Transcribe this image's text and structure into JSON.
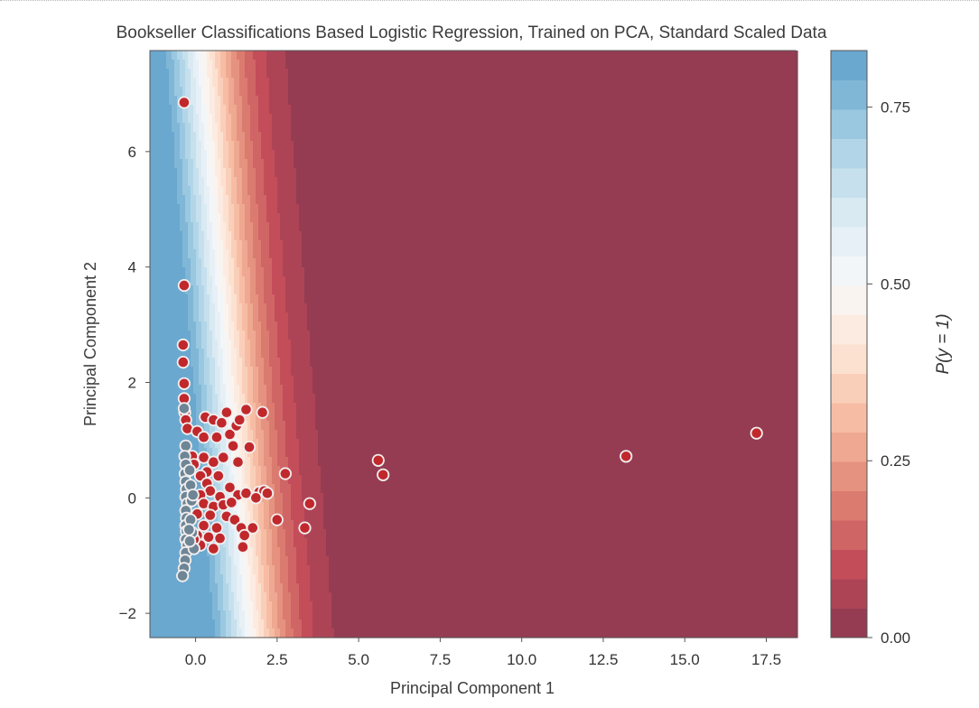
{
  "chart_data": {
    "type": "scatter",
    "title": "Bookseller Classifications Based Logistic Regression, Trained on PCA, Standard Scaled Data",
    "xlabel": "Principal Component 1",
    "ylabel": "Principal Component 2",
    "xlim": [
      -1.4,
      18.4
    ],
    "ylim": [
      -2.42,
      7.75
    ],
    "xticks": [
      0.0,
      2.5,
      5.0,
      7.5,
      10.0,
      12.5,
      15.0,
      17.5
    ],
    "xtick_labels": [
      "0.0",
      "2.5",
      "5.0",
      "7.5",
      "10.0",
      "12.5",
      "15.0",
      "17.5"
    ],
    "yticks": [
      -2,
      0,
      2,
      4,
      6
    ],
    "ytick_labels": [
      "−2",
      "0",
      "2",
      "4",
      "6"
    ],
    "grid": false,
    "background": "filled contour of P(y = 1) from a logistic regression decision function (RdBu colormap)",
    "decision_surface": {
      "intercept": 1.6,
      "coef_x": -1.22,
      "coef_y": -0.18
    },
    "colorbar": {
      "label": "P(y = 1)",
      "range": [
        0.0,
        0.83
      ],
      "ticks": [
        0.0,
        0.25,
        0.5,
        0.75
      ],
      "tick_labels": [
        "0.00",
        "0.25",
        "0.50",
        "0.75"
      ],
      "levels": 20
    },
    "colors": {
      "class_0": "#c0282c",
      "class_1": "#6e8595",
      "marker_edge": "#f2eeee",
      "dark_red": "#67001f",
      "blue": "#8fabc2"
    },
    "series": [
      {
        "class": 0,
        "points": [
          [
            -0.35,
            6.85
          ],
          [
            -0.35,
            3.68
          ],
          [
            -0.38,
            2.65
          ],
          [
            -0.38,
            2.35
          ],
          [
            -0.35,
            1.98
          ],
          [
            -0.35,
            1.72
          ],
          [
            -0.33,
            1.48
          ],
          [
            -0.3,
            1.35
          ],
          [
            -0.25,
            1.2
          ],
          [
            0.05,
            1.15
          ],
          [
            0.3,
            1.4
          ],
          [
            0.55,
            1.35
          ],
          [
            0.8,
            1.3
          ],
          [
            0.95,
            1.48
          ],
          [
            1.55,
            1.53
          ],
          [
            2.05,
            1.48
          ],
          [
            0.25,
            1.05
          ],
          [
            0.65,
            1.05
          ],
          [
            1.05,
            1.1
          ],
          [
            1.25,
            1.25
          ],
          [
            1.35,
            1.35
          ],
          [
            1.65,
            0.88
          ],
          [
            1.15,
            0.9
          ],
          [
            -0.1,
            0.72
          ],
          [
            -0.05,
            0.58
          ],
          [
            0.25,
            0.7
          ],
          [
            0.55,
            0.62
          ],
          [
            0.85,
            0.7
          ],
          [
            1.3,
            0.62
          ],
          [
            0.35,
            0.45
          ],
          [
            0.15,
            0.38
          ],
          [
            0.7,
            0.38
          ],
          [
            0.35,
            0.25
          ],
          [
            1.05,
            0.18
          ],
          [
            0.45,
            0.12
          ],
          [
            0.15,
            0.05
          ],
          [
            0.75,
            0.02
          ],
          [
            1.3,
            0.05
          ],
          [
            1.55,
            0.08
          ],
          [
            1.95,
            0.1
          ],
          [
            2.1,
            0.12
          ],
          [
            2.2,
            0.08
          ],
          [
            1.85,
            0.0
          ],
          [
            0.25,
            -0.1
          ],
          [
            0.55,
            -0.15
          ],
          [
            0.85,
            -0.12
          ],
          [
            1.1,
            -0.08
          ],
          [
            0.05,
            -0.28
          ],
          [
            0.45,
            -0.3
          ],
          [
            0.95,
            -0.32
          ],
          [
            1.2,
            -0.38
          ],
          [
            0.25,
            -0.48
          ],
          [
            0.65,
            -0.52
          ],
          [
            1.4,
            -0.52
          ],
          [
            1.75,
            -0.52
          ],
          [
            0.05,
            -0.65
          ],
          [
            0.4,
            -0.68
          ],
          [
            0.75,
            -0.7
          ],
          [
            1.5,
            -0.65
          ],
          [
            0.15,
            -0.82
          ],
          [
            0.55,
            -0.88
          ],
          [
            1.45,
            -0.85
          ],
          [
            -0.05,
            -0.72
          ],
          [
            2.75,
            0.42
          ],
          [
            3.5,
            -0.1
          ],
          [
            2.5,
            -0.38
          ],
          [
            3.35,
            -0.52
          ],
          [
            5.6,
            0.65
          ],
          [
            5.75,
            0.4
          ],
          [
            13.2,
            0.72
          ],
          [
            17.2,
            1.12
          ]
        ]
      },
      {
        "class": 1,
        "points": [
          [
            -0.35,
            1.55
          ],
          [
            -0.3,
            0.9
          ],
          [
            -0.33,
            0.72
          ],
          [
            -0.3,
            0.58
          ],
          [
            -0.32,
            0.42
          ],
          [
            -0.3,
            0.28
          ],
          [
            -0.28,
            0.15
          ],
          [
            -0.3,
            0.02
          ],
          [
            -0.25,
            -0.1
          ],
          [
            -0.3,
            -0.22
          ],
          [
            -0.28,
            -0.35
          ],
          [
            -0.3,
            -0.48
          ],
          [
            -0.28,
            -0.58
          ],
          [
            -0.3,
            -0.72
          ],
          [
            -0.25,
            -0.82
          ],
          [
            -0.3,
            -0.95
          ],
          [
            -0.32,
            -1.08
          ],
          [
            -0.35,
            -1.22
          ],
          [
            -0.4,
            -1.35
          ],
          [
            -0.18,
            0.48
          ],
          [
            -0.15,
            0.22
          ],
          [
            -0.12,
            -0.05
          ],
          [
            -0.15,
            -0.38
          ],
          [
            -0.1,
            -0.6
          ],
          [
            -0.05,
            -0.88
          ],
          [
            -0.2,
            -0.55
          ],
          [
            -0.08,
            0.05
          ],
          [
            -0.18,
            -0.75
          ]
        ]
      }
    ]
  }
}
